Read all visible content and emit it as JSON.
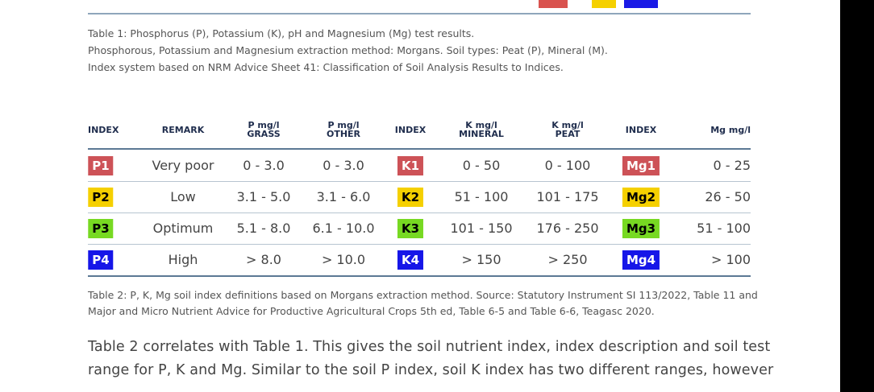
{
  "top_caption": [
    "Table 1: Phosphorus (P), Potassium (K), pH and Magnesium (Mg) test results.",
    "Phosphorous, Potassium and Magnesium extraction method: Morgans. Soil types: Peat (P), Mineral (M).",
    "Index system based on NRM Advice Sheet 41: Classification of Soil Analysis Results to Indices."
  ],
  "table": {
    "headers": [
      [
        "INDEX"
      ],
      [
        "REMARK"
      ],
      [
        "P mg/l",
        "GRASS"
      ],
      [
        "P mg/l",
        "OTHER"
      ],
      [
        "INDEX"
      ],
      [
        "K mg/l",
        "MINERAL"
      ],
      [
        "K mg/l",
        "PEAT"
      ],
      [
        "INDEX"
      ],
      [
        "Mg mg/l"
      ]
    ],
    "rows": [
      [
        "P1",
        "Very poor",
        "0 - 3.0",
        "0 - 3.0",
        "K1",
        "0 - 50",
        "0 - 100",
        "Mg1",
        "0 - 25"
      ],
      [
        "P2",
        "Low",
        "3.1 - 5.0",
        "3.1 - 6.0",
        "K2",
        "51 - 100",
        "101 - 175",
        "Mg2",
        "26 - 50"
      ],
      [
        "P3",
        "Optimum",
        "5.1 - 8.0",
        "6.1 - 10.0",
        "K3",
        "101 - 150",
        "176 - 250",
        "Mg3",
        "51 - 100"
      ],
      [
        "P4",
        "High",
        "> 8.0",
        "> 10.0",
        "K4",
        "> 150",
        "> 250",
        "Mg4",
        "> 100"
      ]
    ]
  },
  "bottom_caption": [
    "Table 2: P, K, Mg soil index definitions based on Morgans extraction method. Source: Statutory Instrument SI 113/2022, Table 11 and",
    "Major and Micro Nutrient Advice for Productive Agricultural Crops 5th ed, Table 6-5 and Table 6-6, Teagasc 2020."
  ],
  "paragraph": [
    "Table 2 correlates with Table 1. This gives the soil nutrient index, index description and soil test",
    "range for P, K and Mg. Similar to the soil P index, soil K index has two different ranges, however"
  ]
}
